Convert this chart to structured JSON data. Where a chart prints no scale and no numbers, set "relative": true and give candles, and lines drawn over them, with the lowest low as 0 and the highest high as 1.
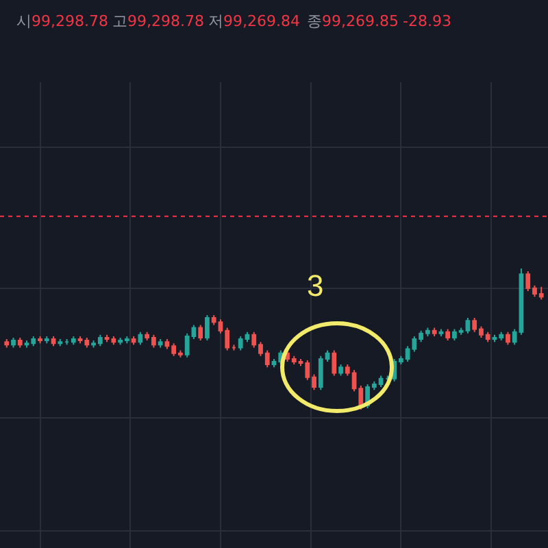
{
  "chart_data": {
    "type": "candlestick",
    "relative": true,
    "grid": true,
    "annotations": [
      "시99,298.78",
      "고99,298.78",
      "저99,269.84",
      "종99,269.85",
      "-28.93",
      "3"
    ],
    "ref_lines": [
      {
        "axis": "y",
        "value": 1.37,
        "color": "#f23645",
        "line_style": "dotted"
      }
    ],
    "categories": [
      null,
      null,
      null,
      null,
      null,
      null,
      null,
      null,
      null,
      null,
      null,
      null,
      null,
      null,
      null,
      null,
      null,
      null,
      null,
      null,
      null,
      null,
      null,
      null,
      null,
      null,
      null,
      null,
      null,
      null,
      null,
      null,
      null,
      null,
      null,
      null,
      null,
      null,
      null,
      null,
      null,
      null,
      null,
      null,
      null,
      null,
      null,
      null,
      null,
      null,
      null,
      null,
      null,
      null,
      null,
      null,
      null,
      null,
      null,
      null,
      null,
      null,
      null,
      null,
      null,
      null,
      null,
      null,
      null,
      null,
      null,
      null,
      null,
      null,
      null,
      null,
      null,
      null,
      null,
      null,
      null
    ],
    "ohlc": [
      [
        0.48,
        0.5,
        0.44,
        0.46
      ],
      [
        0.46,
        0.51,
        0.44,
        0.49
      ],
      [
        0.49,
        0.51,
        0.44,
        0.46
      ],
      [
        0.46,
        0.49,
        0.44,
        0.47
      ],
      [
        0.47,
        0.52,
        0.45,
        0.5
      ],
      [
        0.5,
        0.52,
        0.47,
        0.49
      ],
      [
        0.49,
        0.52,
        0.47,
        0.5
      ],
      [
        0.5,
        0.52,
        0.45,
        0.47
      ],
      [
        0.47,
        0.5,
        0.45,
        0.48
      ],
      [
        0.48,
        0.5,
        0.46,
        0.48
      ],
      [
        0.48,
        0.52,
        0.46,
        0.5
      ],
      [
        0.5,
        0.52,
        0.47,
        0.49
      ],
      [
        0.49,
        0.51,
        0.44,
        0.46
      ],
      [
        0.46,
        0.49,
        0.44,
        0.47
      ],
      [
        0.47,
        0.53,
        0.45,
        0.51
      ],
      [
        0.51,
        0.53,
        0.48,
        0.5
      ],
      [
        0.5,
        0.52,
        0.46,
        0.48
      ],
      [
        0.48,
        0.51,
        0.46,
        0.49
      ],
      [
        0.49,
        0.52,
        0.47,
        0.5
      ],
      [
        0.5,
        0.52,
        0.46,
        0.48
      ],
      [
        0.48,
        0.55,
        0.46,
        0.53
      ],
      [
        0.53,
        0.55,
        0.49,
        0.51
      ],
      [
        0.51,
        0.53,
        0.44,
        0.46
      ],
      [
        0.46,
        0.5,
        0.44,
        0.48
      ],
      [
        0.48,
        0.5,
        0.43,
        0.45
      ],
      [
        0.45,
        0.47,
        0.38,
        0.4
      ],
      [
        0.4,
        0.42,
        0.37,
        0.39
      ],
      [
        0.39,
        0.54,
        0.37,
        0.52
      ],
      [
        0.52,
        0.6,
        0.5,
        0.58
      ],
      [
        0.58,
        0.6,
        0.49,
        0.51
      ],
      [
        0.51,
        0.67,
        0.49,
        0.65
      ],
      [
        0.65,
        0.67,
        0.6,
        0.62
      ],
      [
        0.62,
        0.64,
        0.54,
        0.56
      ],
      [
        0.56,
        0.58,
        0.42,
        0.44
      ],
      [
        0.44,
        0.46,
        0.42,
        0.44
      ],
      [
        0.44,
        0.52,
        0.42,
        0.5
      ],
      [
        0.5,
        0.55,
        0.48,
        0.53
      ],
      [
        0.53,
        0.55,
        0.44,
        0.46
      ],
      [
        0.46,
        0.48,
        0.38,
        0.4
      ],
      [
        0.4,
        0.42,
        0.3,
        0.32
      ],
      [
        0.32,
        0.36,
        0.3,
        0.34
      ],
      [
        0.34,
        0.42,
        0.32,
        0.4
      ],
      [
        0.4,
        0.42,
        0.34,
        0.36
      ],
      [
        0.36,
        0.38,
        0.32,
        0.34
      ],
      [
        0.34,
        0.36,
        0.31,
        0.33
      ],
      [
        0.33,
        0.35,
        0.21,
        0.23
      ],
      [
        0.23,
        0.25,
        0.14,
        0.16
      ],
      [
        0.16,
        0.38,
        0.14,
        0.36
      ],
      [
        0.36,
        0.42,
        0.34,
        0.4
      ],
      [
        0.4,
        0.42,
        0.24,
        0.26
      ],
      [
        0.26,
        0.32,
        0.24,
        0.3
      ],
      [
        0.3,
        0.32,
        0.24,
        0.26
      ],
      [
        0.26,
        0.28,
        0.13,
        0.15
      ],
      [
        0.15,
        0.17,
        0.0,
        0.03
      ],
      [
        0.03,
        0.18,
        0.01,
        0.16
      ],
      [
        0.16,
        0.2,
        0.14,
        0.18
      ],
      [
        0.18,
        0.24,
        0.16,
        0.22
      ],
      [
        0.22,
        0.24,
        0.2,
        0.22
      ],
      [
        0.22,
        0.36,
        0.2,
        0.34
      ],
      [
        0.34,
        0.38,
        0.32,
        0.36
      ],
      [
        0.36,
        0.45,
        0.34,
        0.43
      ],
      [
        0.43,
        0.52,
        0.41,
        0.5
      ],
      [
        0.5,
        0.56,
        0.48,
        0.54
      ],
      [
        0.54,
        0.58,
        0.52,
        0.56
      ],
      [
        0.56,
        0.58,
        0.52,
        0.54
      ],
      [
        0.54,
        0.57,
        0.52,
        0.55
      ],
      [
        0.55,
        0.57,
        0.49,
        0.51
      ],
      [
        0.51,
        0.57,
        0.49,
        0.55
      ],
      [
        0.55,
        0.58,
        0.53,
        0.56
      ],
      [
        0.56,
        0.65,
        0.54,
        0.63
      ],
      [
        0.63,
        0.65,
        0.55,
        0.57
      ],
      [
        0.57,
        0.59,
        0.51,
        0.53
      ],
      [
        0.53,
        0.55,
        0.48,
        0.5
      ],
      [
        0.5,
        0.53,
        0.48,
        0.51
      ],
      [
        0.51,
        0.55,
        0.49,
        0.53
      ],
      [
        0.53,
        0.55,
        0.46,
        0.48
      ],
      [
        0.48,
        0.57,
        0.46,
        0.55
      ],
      [
        0.55,
        1.0,
        0.53,
        0.96
      ],
      [
        0.96,
        0.98,
        0.84,
        0.86
      ],
      [
        0.86,
        0.88,
        0.8,
        0.82
      ],
      [
        0.82,
        0.87,
        0.78,
        0.8
      ]
    ]
  }
}
